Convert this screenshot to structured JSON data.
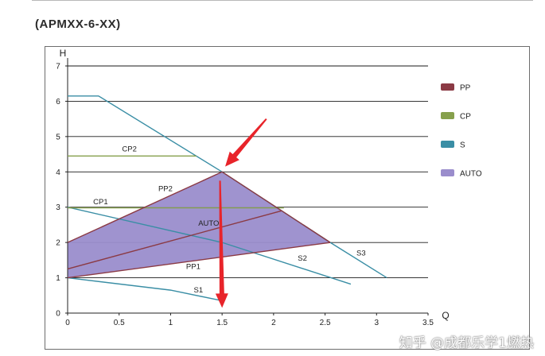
{
  "header": {
    "model_title": "(APMXX-6-XX)"
  },
  "watermark": "知乎 @成都乐学1燃热",
  "chart_data": {
    "type": "line",
    "xlabel": "Q",
    "ylabel": "H",
    "xlim": [
      0,
      3.5
    ],
    "ylim": [
      0,
      7
    ],
    "x_ticks": [
      "0",
      "0.5",
      "1",
      "1.5",
      "2",
      "2.5",
      "3",
      "3.5"
    ],
    "y_ticks": [
      "0",
      "1",
      "2",
      "3",
      "4",
      "5",
      "6",
      "7"
    ],
    "grid": "horizontal",
    "legend": {
      "position": "right",
      "entries": [
        {
          "label": "PP",
          "color": "#8b3a44"
        },
        {
          "label": "CP",
          "color": "#86a04c"
        },
        {
          "label": "S",
          "color": "#3a8ea5"
        },
        {
          "label": "AUTO",
          "color": "#9a8dcc"
        }
      ]
    },
    "auto_region": {
      "label": "AUTO",
      "points": [
        [
          0,
          1
        ],
        [
          0,
          2
        ],
        [
          1.5,
          4
        ],
        [
          2.55,
          2
        ]
      ],
      "color": "#9a8dcc"
    },
    "series": [
      {
        "name": "S3",
        "group": "S",
        "x": [
          0,
          0.3,
          1.5,
          2.55,
          3.1
        ],
        "y": [
          6.15,
          6.15,
          4,
          2,
          1
        ],
        "label_at": [
          2.85,
          1.63
        ]
      },
      {
        "name": "S2",
        "group": "S",
        "x": [
          0,
          1.5,
          2.75
        ],
        "y": [
          3,
          2,
          0.82
        ],
        "label_at": [
          2.28,
          1.48
        ]
      },
      {
        "name": "S1",
        "group": "S",
        "x": [
          0,
          1.0,
          1.5
        ],
        "y": [
          1,
          0.65,
          0.35
        ],
        "label_at": [
          1.27,
          0.58
        ]
      },
      {
        "name": "CP2",
        "group": "CP",
        "x": [
          0,
          1.25
        ],
        "y": [
          4.45,
          4.45
        ],
        "label_at": [
          0.6,
          4.58
        ]
      },
      {
        "name": "CP1",
        "group": "CP",
        "x": [
          0,
          2.1
        ],
        "y": [
          2.98,
          2.98
        ],
        "label_at": [
          0.32,
          3.08
        ]
      },
      {
        "name": "PP2",
        "group": "PP",
        "x": [
          0,
          1.5,
          2.55
        ],
        "y": [
          2,
          4,
          2
        ],
        "label_at": [
          0.95,
          3.45
        ]
      },
      {
        "name": "PP1",
        "group": "PP",
        "x": [
          0,
          2.55
        ],
        "y": [
          1,
          2
        ],
        "label_at": [
          1.22,
          1.25
        ]
      },
      {
        "name": "AUTO",
        "group": "PP",
        "x": [
          0,
          2.08
        ],
        "y": [
          1.25,
          2.9
        ],
        "label_at": [
          1.37,
          2.48
        ]
      }
    ],
    "annotations": [
      {
        "type": "arrow",
        "color": "#e8242a",
        "from": [
          1.93,
          5.5
        ],
        "to": [
          1.53,
          4.15
        ]
      },
      {
        "type": "arrow",
        "color": "#e8242a",
        "from": [
          1.48,
          3.75
        ],
        "to": [
          1.5,
          0.15
        ]
      }
    ]
  }
}
